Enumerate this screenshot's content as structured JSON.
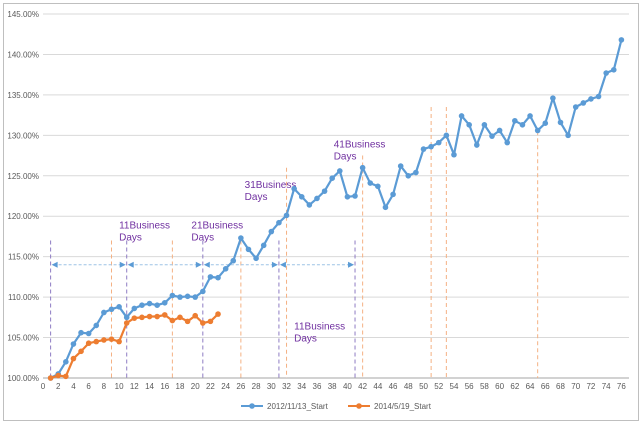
{
  "chart_data": {
    "type": "line",
    "ylim": [
      100,
      145
    ],
    "xlim": [
      0,
      77
    ],
    "y_ticks": [
      100,
      105,
      110,
      115,
      120,
      125,
      130,
      135,
      140,
      145
    ],
    "y_tick_labels": [
      "100.00%",
      "105.00%",
      "110.00%",
      "115.00%",
      "120.00%",
      "125.00%",
      "130.00%",
      "135.00%",
      "140.00%",
      "145.00%"
    ],
    "x_ticks": [
      0,
      2,
      4,
      6,
      8,
      10,
      12,
      14,
      16,
      18,
      20,
      22,
      24,
      26,
      28,
      30,
      32,
      34,
      36,
      38,
      40,
      42,
      44,
      46,
      48,
      50,
      52,
      54,
      56,
      58,
      60,
      62,
      64,
      66,
      68,
      70,
      72,
      74,
      76
    ],
    "x_tick_labels": [
      "0",
      "2",
      "4",
      "6",
      "8",
      "10",
      "12",
      "14",
      "16",
      "18",
      "20",
      "22",
      "24",
      "26",
      "28",
      "30",
      "32",
      "34",
      "36",
      "38",
      "40",
      "42",
      "44",
      "46",
      "48",
      "50",
      "52",
      "54",
      "56",
      "58",
      "60",
      "62",
      "64",
      "66",
      "68",
      "70",
      "72",
      "74",
      "76"
    ],
    "grid": true,
    "legend": "bottom",
    "series": [
      {
        "name": "2012/11/13_Start",
        "color": "#5b9bd5",
        "x": [
          1,
          2,
          3,
          4,
          5,
          6,
          7,
          8,
          9,
          10,
          11,
          12,
          13,
          14,
          15,
          16,
          17,
          18,
          19,
          20,
          21,
          22,
          23,
          24,
          25,
          26,
          27,
          28,
          29,
          30,
          31,
          32,
          33,
          34,
          35,
          36,
          37,
          38,
          39,
          40,
          41,
          42,
          43,
          44,
          45,
          46,
          47,
          48,
          49,
          50,
          51,
          52,
          53,
          54,
          55,
          56,
          57,
          58,
          59,
          60,
          61,
          62,
          63,
          64,
          65,
          66,
          67,
          68,
          69,
          70,
          71,
          72,
          73,
          74,
          75,
          76
        ],
        "values": [
          100,
          100.5,
          102,
          104.2,
          105.6,
          105.5,
          106.5,
          108.1,
          108.5,
          108.8,
          107.5,
          108.6,
          109,
          109.2,
          109,
          109.3,
          110.2,
          110,
          110.1,
          110,
          110.7,
          112.5,
          112.4,
          113.5,
          114.5,
          117.3,
          115.9,
          114.8,
          116.4,
          118.1,
          119.2,
          120.1,
          123.4,
          122.4,
          121.4,
          122.2,
          123.1,
          124.7,
          125.6,
          122.4,
          122.5,
          126,
          124.1,
          123.7,
          121.1,
          122.7,
          126.2,
          125,
          125.4,
          128.3,
          128.6,
          129.1,
          130,
          127.6,
          132.4,
          131.3,
          128.8,
          131.3,
          129.9,
          130.6,
          129.1,
          131.8,
          131.3,
          132.4,
          130.6,
          131.5,
          134.6,
          131.6,
          130,
          133.5,
          134,
          134.5,
          134.8,
          137.7,
          138.1,
          141.8
        ]
      },
      {
        "name": "2014/5/19_Start",
        "color": "#ed7d31",
        "x": [
          1,
          2,
          3,
          4,
          5,
          6,
          7,
          8,
          9,
          10,
          11,
          12,
          13,
          14,
          15,
          16,
          17,
          18,
          19,
          20,
          21,
          22,
          23
        ],
        "values": [
          100,
          100.3,
          100.2,
          102.4,
          103.3,
          104.3,
          104.5,
          104.7,
          104.8,
          104.5,
          106.8,
          107.4,
          107.5,
          107.6,
          107.6,
          107.8,
          107.1,
          107.5,
          107,
          107.7,
          106.8,
          107,
          107.9
        ]
      }
    ],
    "vertical_markers": {
      "purple": [
        1,
        11,
        21,
        31,
        41
      ],
      "orange": [
        9,
        17,
        26,
        32,
        42,
        51,
        53,
        65
      ]
    },
    "annotations": [
      {
        "line1": "11Business",
        "line2": "Days",
        "at_x": 10,
        "at_y": 118.5
      },
      {
        "line1": "21Business",
        "line2": "Days",
        "at_x": 19.5,
        "at_y": 118.5
      },
      {
        "line1": "31Business",
        "line2": "Days",
        "at_x": 26.5,
        "at_y": 123.5
      },
      {
        "line1": "41Business",
        "line2": "Days",
        "at_x": 38.2,
        "at_y": 128.5
      },
      {
        "line1": "11Business",
        "line2": "Days",
        "at_x": 33,
        "at_y": 106
      }
    ],
    "spans": [
      {
        "from": 1,
        "to": 11,
        "at_y": 114
      },
      {
        "from": 11,
        "to": 21,
        "at_y": 114
      },
      {
        "from": 21,
        "to": 31,
        "at_y": 114
      },
      {
        "from": 31,
        "to": 41,
        "at_y": 114
      }
    ]
  }
}
